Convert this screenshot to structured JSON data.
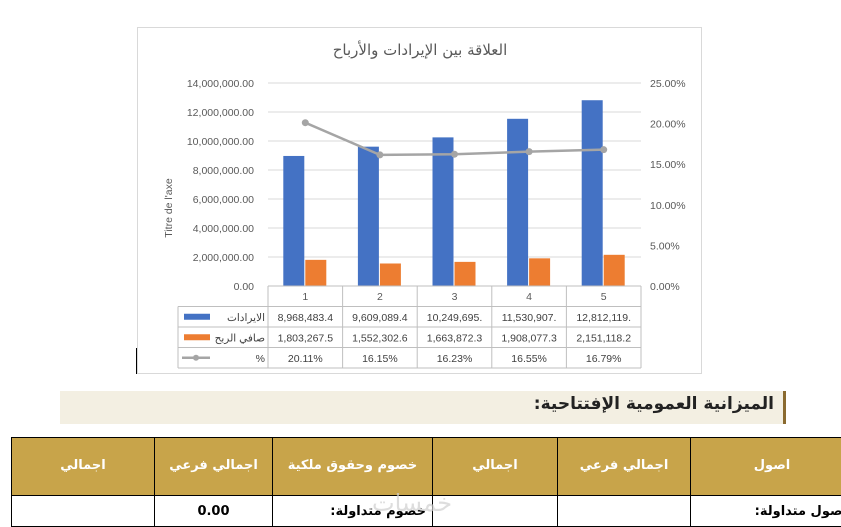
{
  "chart_data": {
    "type": "bar",
    "title": "العلاقة بين الإيرادات والأرباح",
    "ylabel": "Titre de l'axe",
    "categories": [
      "1",
      "2",
      "3",
      "4",
      "5"
    ],
    "ylim": [
      0,
      14000000
    ],
    "y2lim": [
      0,
      0.25
    ],
    "y_ticks": [
      "0.00",
      "2,000,000.00",
      "4,000,000.00",
      "6,000,000.00",
      "8,000,000.00",
      "10,000,000.00",
      "12,000,000.00",
      "14,000,000.00"
    ],
    "y2_ticks": [
      "0.00%",
      "5.00%",
      "10.00%",
      "15.00%",
      "20.00%",
      "25.00%"
    ],
    "grid": true,
    "series": [
      {
        "name": "الايرادات",
        "kind": "bar",
        "color": "#4472c4",
        "values": [
          8968483.4,
          9609089.4,
          10249695,
          11530907,
          12812119
        ],
        "labels": [
          "8,968,483.4",
          "9,609,089.4",
          "10,249,695.",
          "11,530,907.",
          "12,812,119."
        ]
      },
      {
        "name": "صافي الربح",
        "kind": "bar",
        "color": "#ed7d31",
        "values": [
          1803267.5,
          1552302.6,
          1663872.3,
          1908077.3,
          2151118.2
        ],
        "labels": [
          "1,803,267.5",
          "1,552,302.6",
          "1,663,872.3",
          "1,908,077.3",
          "2,151,118.2"
        ]
      },
      {
        "name": "%",
        "kind": "line",
        "axis": "secondary",
        "color": "#a5a5a5",
        "values": [
          0.2011,
          0.1615,
          0.1623,
          0.1655,
          0.1679
        ],
        "labels": [
          "20.11%",
          "16.15%",
          "16.23%",
          "16.55%",
          "16.79%"
        ]
      }
    ]
  },
  "section": {
    "heading": "الميزانية العمومية الإفتتاحية:"
  },
  "table": {
    "headers": [
      "اصول",
      "اجمالي فرعي",
      "اجمالي",
      "خصوم وحقوق ملكية",
      "اجمالي فرعي",
      "اجمالي"
    ],
    "row1": [
      "اصول متداولة:",
      "",
      "",
      "خصوم متداولة:",
      "0.00",
      ""
    ]
  },
  "watermark": "خمسات",
  "colors": {
    "header_bg": "#c8a44a",
    "heading_bg": "#f3efe2",
    "heading_rule": "#8a6a2f"
  }
}
